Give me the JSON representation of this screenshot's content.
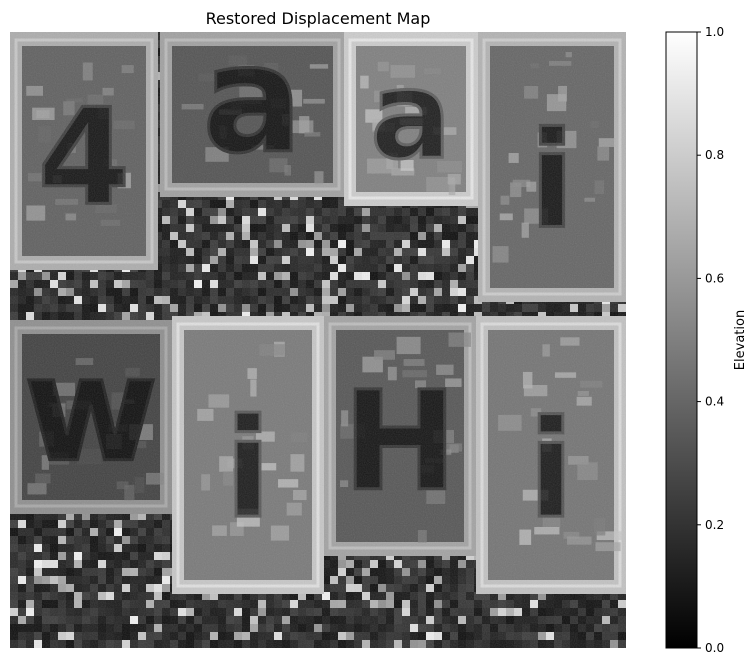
{
  "chart_data": {
    "type": "heatmap",
    "title": "Restored Displacement Map",
    "xlabel": "",
    "ylabel": "",
    "colormap": "gray",
    "colormap_colors": [
      "#000000",
      "#ffffff"
    ],
    "grid": false,
    "axes_visible": false,
    "tile_glyphs": [
      "4",
      "a",
      "a",
      "i",
      "w",
      "i",
      "H",
      "i"
    ],
    "colorbar": {
      "label": "Elevation",
      "range": [
        0.0,
        1.0
      ],
      "ticks": [
        0.0,
        0.2,
        0.4,
        0.6,
        0.8,
        1.0
      ],
      "tick_labels": [
        "0.0",
        "0.2",
        "0.4",
        "0.6",
        "0.8",
        "1.0"
      ]
    }
  }
}
